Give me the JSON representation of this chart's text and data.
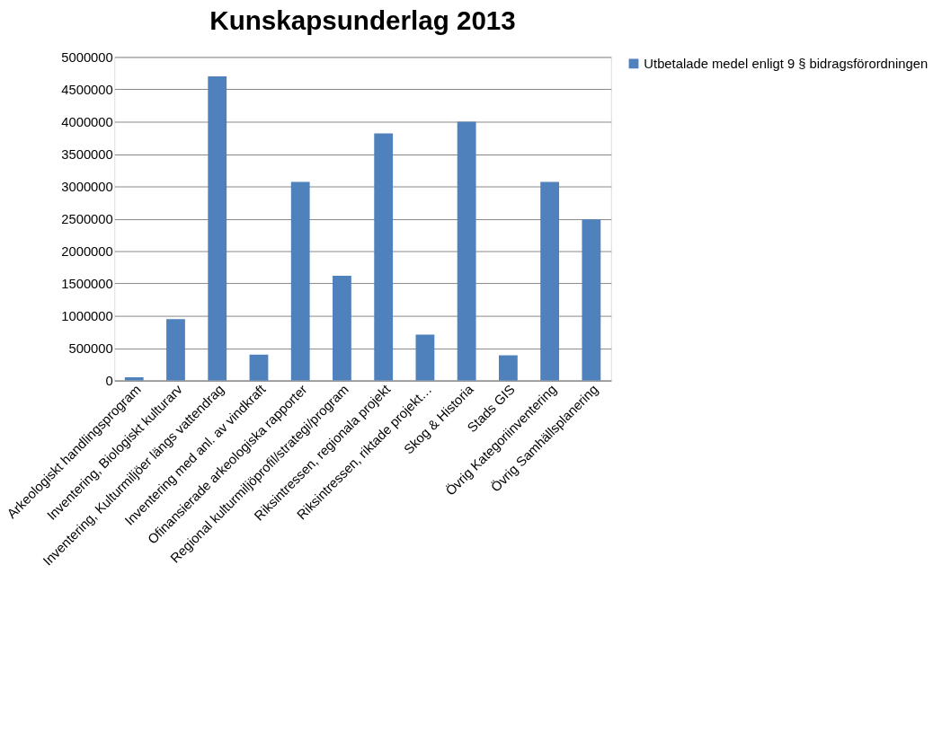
{
  "chart_data": {
    "type": "bar",
    "title": "Kunskapsunderlag 2013",
    "categories": [
      "Arkeologiskt handlingsprogram",
      "Inventering, Biologiskt kulturarv",
      "Inventering, Kulturmiljöer längs vattendrag",
      "Inventering med anl. av vindkraft",
      "Ofinansierade arkeologiska rapporter",
      "Regional kulturmiljöprofil/strategi/program",
      "Riksintressen, regionala projekt",
      "Riksintressen, riktade projekt…",
      "Skog & Historia",
      "Stads GIS",
      "Övrig Kategoriinventering",
      "Övrig Samhällsplanering"
    ],
    "series": [
      {
        "name": "Utbetalade medel enligt 9 § bidragsförordningen",
        "color": "#4f81bd",
        "values": [
          50000,
          950000,
          4700000,
          400000,
          3070000,
          1620000,
          3820000,
          710000,
          4000000,
          390000,
          3070000,
          2490000
        ]
      }
    ],
    "ylim": [
      0,
      5000000
    ],
    "yticks": [
      0,
      500000,
      1000000,
      1500000,
      2000000,
      2500000,
      3000000,
      3500000,
      4000000,
      4500000,
      5000000
    ],
    "grid": "y",
    "legend": "right"
  }
}
